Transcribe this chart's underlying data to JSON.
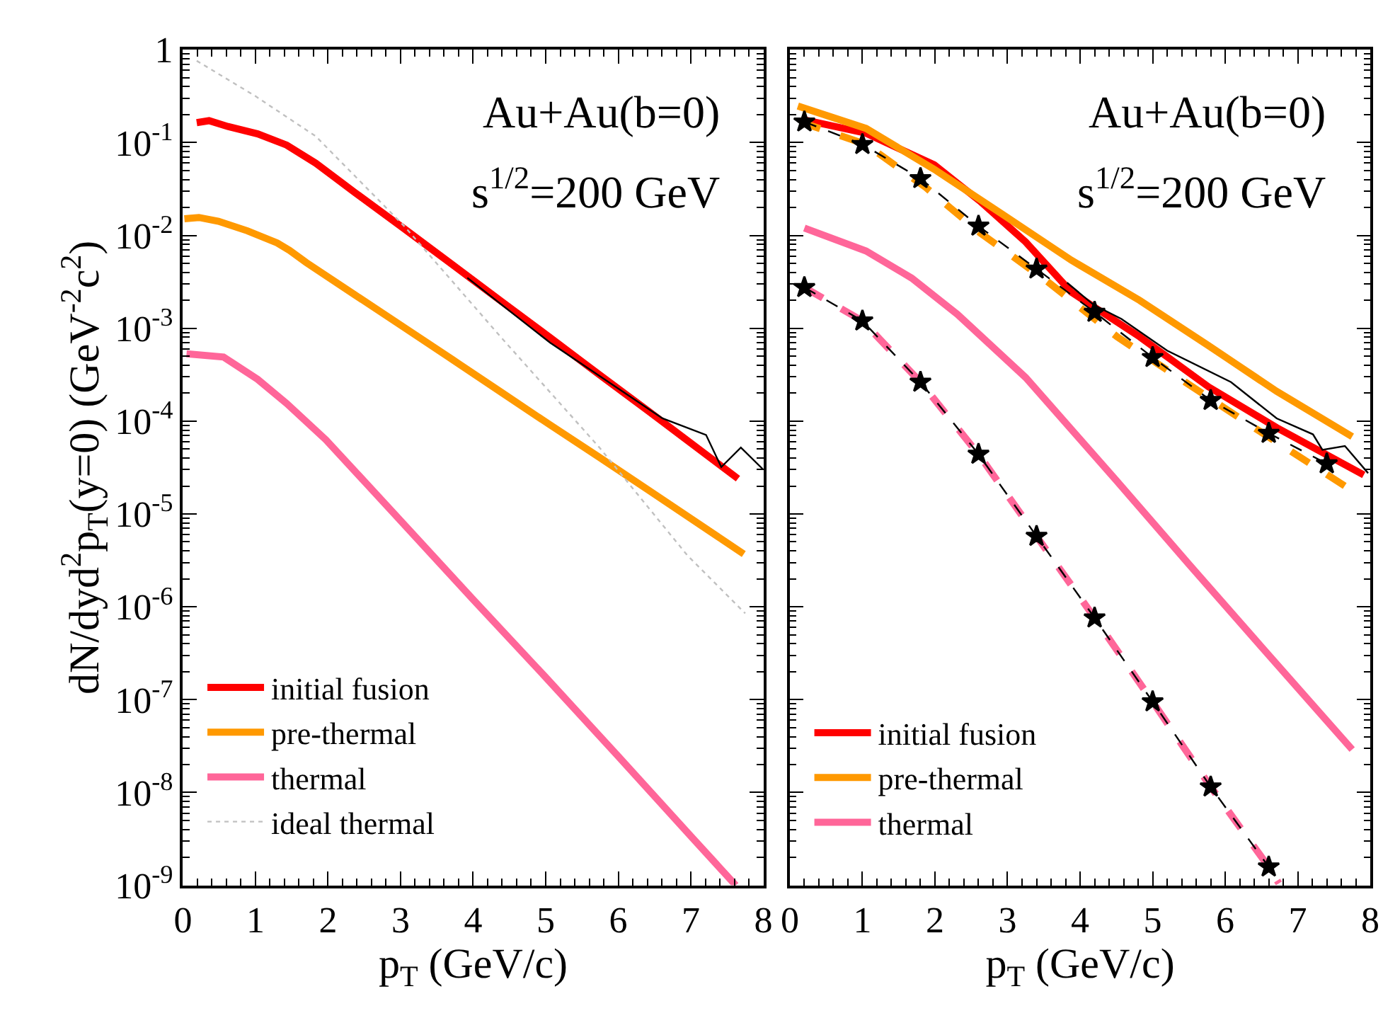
{
  "chart_data": [
    {
      "type": "line",
      "xlabel": "p$_{T}$ (GeV/c)",
      "ylabel": "dN/dyd$^{2}$p$_{T}$(y=0) (GeV$^{-2}$c$^{2}$)",
      "log": "y",
      "xlim": [
        0,
        8
      ],
      "ylim": [
        1e-09,
        1
      ],
      "xticks": [
        0,
        1,
        2,
        3,
        4,
        5,
        6,
        7,
        8
      ],
      "yticks": [
        1,
        {
          "value": 0.1,
          "label": "10$^{-1}$"
        },
        {
          "value": 0.01,
          "label": "10$^{-2}$"
        },
        {
          "value": 0.001,
          "label": "10$^{-3}$"
        },
        {
          "value": 0.0001,
          "label": "10$^{-4}$"
        },
        {
          "value": 1e-05,
          "label": "10$^{-5}$"
        },
        {
          "value": 1e-06,
          "label": "10$^{-6}$"
        },
        {
          "value": 1e-07,
          "label": "10$^{-7}$"
        },
        {
          "value": 1e-08,
          "label": "10$^{-8}$"
        },
        {
          "value": 1e-09,
          "label": "10$^{-9}$"
        }
      ],
      "legend": "bottom left",
      "annotations": [
        "Au+Au(b=0)",
        "s$^{1/2}$=200 GeV"
      ],
      "series": [
        {
          "name": "initial fusion",
          "color": "#ff0000",
          "line_style": "solid",
          "x": [
            0.19,
            0.36,
            0.62,
            1.03,
            1.43,
            1.83,
            2.37,
            3.05,
            3.72,
            4.39,
            5.06,
            5.74,
            6.41,
            7.65
          ],
          "values": [
            0.164,
            0.172,
            0.149,
            0.124,
            0.094,
            0.06,
            0.029,
            0.0118,
            0.0048,
            0.00195,
            0.000794,
            0.000316,
            0.000129,
            2.4e-05
          ]
        },
        {
          "name": "pre-thermal",
          "color": "#ff9900",
          "line_style": "solid",
          "x": [
            0.02,
            0.22,
            0.49,
            0.89,
            1.3,
            1.47,
            1.7,
            2.37,
            3.05,
            3.72,
            4.39,
            5.06,
            5.74,
            6.41,
            7.73
          ],
          "values": [
            0.0151,
            0.0156,
            0.0142,
            0.0112,
            0.0083,
            0.0069,
            0.0051,
            0.00229,
            0.00102,
            0.000457,
            0.000204,
            9.1e-05,
            4.07e-05,
            1.82e-05,
            3.7e-06
          ]
        },
        {
          "name": "thermal",
          "color": "#ff6699",
          "line_style": "solid",
          "x": [
            0.05,
            0.56,
            1.03,
            1.43,
            1.97,
            2.88,
            4,
            5,
            6,
            7,
            7.62
          ],
          "values": [
            0.00053,
            0.00049,
            0.000282,
            0.000155,
            6.3e-05,
            1.07e-05,
            1.2e-06,
            1.74e-07,
            2.45e-08,
            3.39e-09,
            1e-09
          ]
        },
        {
          "name": "ideal thermal",
          "color": "#c0c0c0",
          "line_style": "dotted",
          "x": [
            0.19,
            1.0,
            1.83,
            3.05,
            4.39,
            5.74,
            6.95,
            7.75
          ],
          "values": [
            0.76,
            0.316,
            0.117,
            0.0126,
            0.00079,
            5.2e-05,
            3.6e-06,
            8.5e-07
          ]
        },
        {
          "color": "#000000",
          "line_style": "solid",
          "x": [
            3.92,
            5.06,
            6.61,
            7.21,
            7.42,
            7.69,
            8.0
          ],
          "values": [
            0.0035,
            0.0007,
            0.000107,
            7.1e-05,
            3.2e-05,
            5.2e-05,
            3e-05
          ]
        }
      ]
    },
    {
      "type": "line",
      "xlabel": "p$_{T}$ (GeV/c)",
      "tick_labels": "x",
      "log": "y",
      "xlim": [
        0,
        8
      ],
      "ylim": [
        1e-09,
        1
      ],
      "xticks": [
        0,
        1,
        2,
        3,
        4,
        5,
        6,
        7,
        8
      ],
      "yticks": [
        1,
        {
          "value": 0.1,
          "label": "10$^{-1}$"
        },
        {
          "value": 0.01,
          "label": "10$^{-2}$"
        },
        {
          "value": 0.001,
          "label": "10$^{-3}$"
        },
        {
          "value": 0.0001,
          "label": "10$^{-4}$"
        },
        {
          "value": 1e-05,
          "label": "10$^{-5}$"
        },
        {
          "value": 1e-06,
          "label": "10$^{-6}$"
        },
        {
          "value": 1e-07,
          "label": "10$^{-7}$"
        },
        {
          "value": 1e-08,
          "label": "10$^{-8}$"
        },
        {
          "value": 1e-09,
          "label": "10$^{-9}$"
        }
      ],
      "legend": "bottom left",
      "annotations": [
        "Au+Au(b=0)",
        "s$^{1/2}$=200 GeV"
      ],
      "series": [
        {
          "name": "initial fusion",
          "color": "#ff0000",
          "line_style": "solid",
          "x": [
            0.17,
            1.05,
            1.99,
            2.62,
            3.25,
            3.88,
            4.82,
            5.77,
            6.71,
            7.91
          ],
          "values": [
            0.178,
            0.126,
            0.0575,
            0.0234,
            0.0085,
            0.00245,
            0.00081,
            0.000234,
            8.5e-05,
            2.63e-05
          ]
        },
        {
          "name": "pre-thermal",
          "color": "#ff9900",
          "line_style": "solid",
          "x": [
            0.11,
            1.05,
            1.99,
            2.94,
            3.88,
            4.82,
            5.77,
            6.71,
            7.75
          ],
          "values": [
            0.248,
            0.142,
            0.0515,
            0.0167,
            0.0054,
            0.002,
            0.00065,
            0.000209,
            6.8e-05
          ]
        },
        {
          "name": "thermal",
          "color": "#ff6699",
          "line_style": "solid",
          "x": [
            0.2,
            1.05,
            1.68,
            2.31,
            3.25,
            4.5,
            5.5,
            6.5,
            7.75
          ],
          "values": [
            0.012,
            0.0068,
            0.00347,
            0.00141,
            0.000295,
            2.29e-05,
            2.88e-06,
            3.7e-07,
            2.9e-08
          ]
        },
        {
          "color": "#ff9900",
          "line_style": "dashed",
          "x": [
            0.14,
            1.05,
            1.87,
            2.62,
            3.57,
            4.51,
            5.45,
            6.4,
            7.65
          ],
          "values": [
            0.167,
            0.0955,
            0.033,
            0.0107,
            0.0031,
            0.00081,
            0.000263,
            8.5e-05,
            2e-05
          ]
        },
        {
          "color": "#ff6699",
          "line_style": "dashed",
          "x": [
            0.2,
            1,
            1.8,
            2.6,
            3.4,
            4.2,
            5,
            5.8,
            6.6,
            6.74
          ],
          "values": [
            0.00275,
            0.0012,
            0.000263,
            4.4e-05,
            5.75e-06,
            7.6e-07,
            9.5e-08,
            1.15e-08,
            1.58e-09,
            1.05e-09
          ]
        },
        {
          "color": "#000000",
          "line_style": "solid",
          "x": [
            3.82,
            4.19,
            4.57,
            5.2,
            6.08,
            6.71,
            7.21,
            7.34,
            7.65,
            7.97
          ],
          "values": [
            0.0031,
            0.00178,
            0.00126,
            0.000575,
            0.000263,
            0.000107,
            7.2e-05,
            4.9e-05,
            5.4e-05,
            2.75e-05
          ]
        },
        {
          "color": "#000000",
          "line_style": "dashed",
          "marker": "star",
          "x": [
            0.2,
            1,
            1.8,
            2.6,
            3.4,
            4.2,
            5,
            5.8,
            6.6,
            7.4
          ],
          "values": [
            0.167,
            0.0955,
            0.041,
            0.0126,
            0.00435,
            0.00149,
            0.000485,
            0.000167,
            7.4e-05,
            3.47e-05
          ]
        },
        {
          "color": "#000000",
          "line_style": "dashed",
          "marker": "star",
          "x": [
            0.2,
            1,
            1.8,
            2.6,
            3.4,
            4.2,
            5,
            5.8,
            6.6
          ],
          "values": [
            0.00275,
            0.0012,
            0.000263,
            4.4e-05,
            5.75e-06,
            7.6e-07,
            9.5e-08,
            1.15e-08,
            1.58e-09
          ]
        }
      ]
    }
  ]
}
